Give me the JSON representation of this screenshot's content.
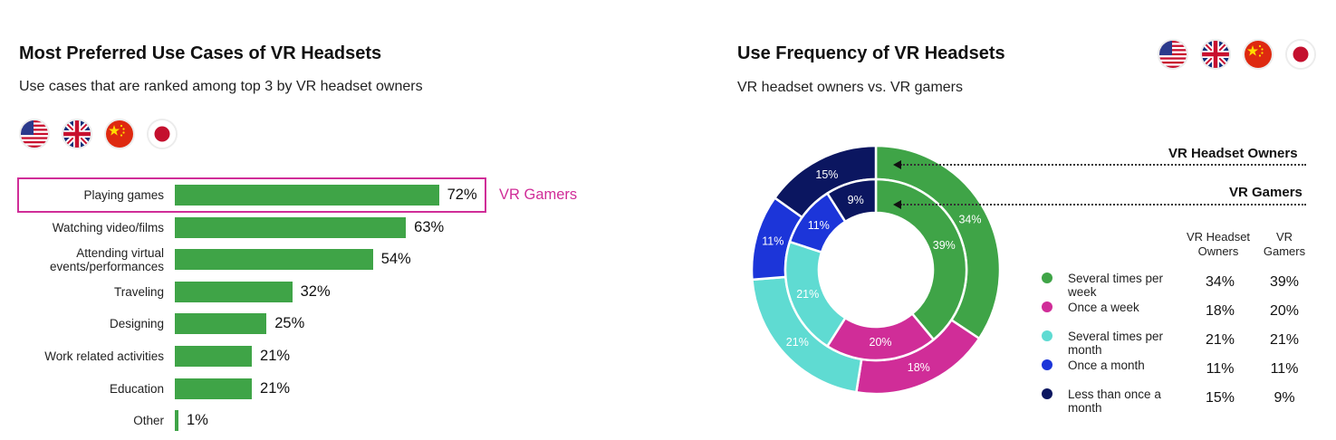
{
  "chart_data": [
    {
      "type": "bar",
      "orientation": "horizontal",
      "title": "Most Preferred Use Cases of VR Headsets",
      "subtitle": "Use cases that are ranked among top 3 by VR headset owners",
      "categories": [
        "Playing games",
        "Watching video/films",
        "Attending virtual events/performances",
        "Traveling",
        "Designing",
        "Work related activities",
        "Education",
        "Other"
      ],
      "category_lines": [
        [
          "Playing games"
        ],
        [
          "Watching video/films"
        ],
        [
          "Attending virtual",
          "events/performances"
        ],
        [
          "Traveling"
        ],
        [
          "Designing"
        ],
        [
          "Work related activities"
        ],
        [
          "Education"
        ],
        [
          "Other"
        ]
      ],
      "values": [
        72,
        63,
        54,
        32,
        25,
        21,
        21,
        1
      ],
      "value_labels": [
        "72%",
        "63%",
        "54%",
        "32%",
        "25%",
        "21%",
        "21%",
        "1%"
      ],
      "bar_color": "#3fa447",
      "highlight": {
        "category": "Playing games",
        "label": "VR Gamers",
        "color": "#d02d98"
      },
      "grid": false
    },
    {
      "type": "pie",
      "subtype": "nested-donut",
      "title": "Use Frequency of VR Headsets",
      "subtitle": "VR headset owners vs. VR gamers",
      "categories": [
        "Several times per week",
        "Once a week",
        "Several times per month",
        "Once a month",
        "Less than once a month"
      ],
      "category_lines": [
        [
          "Several times per",
          "week"
        ],
        [
          "Once a week"
        ],
        [
          "Several times per",
          "month"
        ],
        [
          "Once a month"
        ],
        [
          "Less than once a",
          "month"
        ]
      ],
      "colors": [
        "#3fa447",
        "#d02d98",
        "#5fdbd2",
        "#1c35d9",
        "#0b1660"
      ],
      "series": [
        {
          "name": "VR Headset Owners",
          "ring": "outer",
          "values": [
            34,
            18,
            21,
            11,
            15
          ],
          "labels": [
            "34%",
            "18%",
            "21%",
            "11%",
            "15%"
          ]
        },
        {
          "name": "VR Gamers",
          "ring": "inner",
          "values": [
            39,
            20,
            21,
            11,
            9
          ],
          "labels": [
            "39%",
            "20%",
            "21%",
            "11%",
            "9%"
          ]
        }
      ],
      "ring_labels": [
        "VR Headset Owners",
        "VR Gamers"
      ],
      "column_headers": [
        [
          "VR Headset",
          "Owners"
        ],
        [
          "VR",
          "Gamers"
        ]
      ]
    }
  ],
  "flags": [
    "us-flag-icon",
    "uk-flag-icon",
    "china-flag-icon",
    "japan-flag-icon"
  ]
}
